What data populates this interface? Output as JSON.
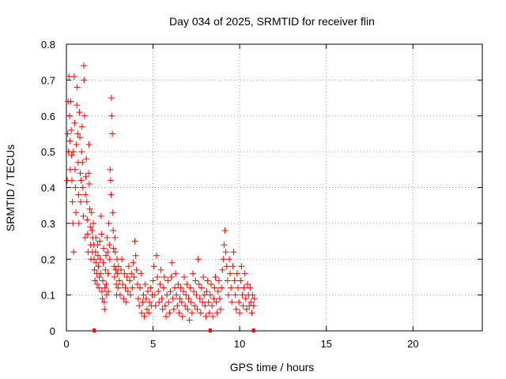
{
  "chart_data": {
    "type": "scatter",
    "title": "Day 034 of 2025, SRMTID for receiver flin",
    "xlabel": "GPS time / hours",
    "ylabel": "SRMTID / TECUs",
    "xlim": [
      0,
      24
    ],
    "ylim": [
      0,
      0.8
    ],
    "x_ticks": [
      0,
      5,
      10,
      15,
      20
    ],
    "y_ticks": [
      0,
      0.1,
      0.2,
      0.3,
      0.4,
      0.5,
      0.6,
      0.7,
      0.8
    ],
    "x_tick_labels": [
      "0",
      "5",
      "10",
      "15",
      "20"
    ],
    "y_tick_labels": [
      "0",
      "0.1",
      "0.2",
      "0.3",
      "0.4",
      "0.5",
      "0.6",
      "0.7",
      "0.8"
    ],
    "grid": true,
    "marker": "+",
    "series_color": "#ff0000",
    "zero_markers_x": [
      1.6,
      8.3,
      10.8
    ],
    "series": [
      {
        "name": "SRMTID",
        "points": [
          [
            0.05,
            0.42
          ],
          [
            0.08,
            0.55
          ],
          [
            0.1,
            0.64
          ],
          [
            0.12,
            0.5
          ],
          [
            0.15,
            0.71
          ],
          [
            0.18,
            0.6
          ],
          [
            0.2,
            0.53
          ],
          [
            0.22,
            0.45
          ],
          [
            0.25,
            0.64
          ],
          [
            0.28,
            0.56
          ],
          [
            0.3,
            0.49
          ],
          [
            0.32,
            0.42
          ],
          [
            0.35,
            0.36
          ],
          [
            0.37,
            0.3
          ],
          [
            0.4,
            0.5
          ],
          [
            0.42,
            0.22
          ],
          [
            0.45,
            0.71
          ],
          [
            0.48,
            0.58
          ],
          [
            0.5,
            0.45
          ],
          [
            0.52,
            0.4
          ],
          [
            0.55,
            0.33
          ],
          [
            0.58,
            0.52
          ],
          [
            0.6,
            0.63
          ],
          [
            0.62,
            0.68
          ],
          [
            0.65,
            0.55
          ],
          [
            0.68,
            0.47
          ],
          [
            0.7,
            0.38
          ],
          [
            0.72,
            0.3
          ],
          [
            0.75,
            0.61
          ],
          [
            0.78,
            0.54
          ],
          [
            0.8,
            0.44
          ],
          [
            0.82,
            0.36
          ],
          [
            0.85,
            0.42
          ],
          [
            0.88,
            0.5
          ],
          [
            0.9,
            0.57
          ],
          [
            0.92,
            0.47
          ],
          [
            0.95,
            0.4
          ],
          [
            0.98,
            0.32
          ],
          [
            1.0,
            0.74
          ],
          [
            1.02,
            0.7
          ],
          [
            1.05,
            0.6
          ],
          [
            1.08,
            0.26
          ],
          [
            1.1,
            0.38
          ],
          [
            1.12,
            0.43
          ],
          [
            1.15,
            0.48
          ],
          [
            1.18,
            0.36
          ],
          [
            1.2,
            0.31
          ],
          [
            1.22,
            0.27
          ],
          [
            1.25,
            0.22
          ],
          [
            1.28,
            0.44
          ],
          [
            1.3,
            0.52
          ],
          [
            1.32,
            0.41
          ],
          [
            1.35,
            0.34
          ],
          [
            1.38,
            0.29
          ],
          [
            1.4,
            0.24
          ],
          [
            1.42,
            0.2
          ],
          [
            1.45,
            0.33
          ],
          [
            1.48,
            0.28
          ],
          [
            1.5,
            0.22
          ],
          [
            1.52,
            0.26
          ],
          [
            1.55,
            0.3
          ],
          [
            1.58,
            0.24
          ],
          [
            1.6,
            0.2
          ],
          [
            1.62,
            0.17
          ],
          [
            1.65,
            0.14
          ],
          [
            1.68,
            0.22
          ],
          [
            1.7,
            0.26
          ],
          [
            1.72,
            0.19
          ],
          [
            1.75,
            0.16
          ],
          [
            1.78,
            0.13
          ],
          [
            1.8,
            0.24
          ],
          [
            1.82,
            0.21
          ],
          [
            1.85,
            0.18
          ],
          [
            1.88,
            0.12
          ],
          [
            1.9,
            0.15
          ],
          [
            1.92,
            0.25
          ],
          [
            1.95,
            0.2
          ],
          [
            1.98,
            0.16
          ],
          [
            2.0,
            0.32
          ],
          [
            2.02,
            0.27
          ],
          [
            2.05,
            0.11
          ],
          [
            2.08,
            0.09
          ],
          [
            2.1,
            0.14
          ],
          [
            2.12,
            0.19
          ],
          [
            2.15,
            0.23
          ],
          [
            2.18,
            0.08
          ],
          [
            2.2,
            0.06
          ],
          [
            2.22,
            0.12
          ],
          [
            2.25,
            0.17
          ],
          [
            2.28,
            0.21
          ],
          [
            2.3,
            0.13
          ],
          [
            2.32,
            0.1
          ],
          [
            2.35,
            0.26
          ],
          [
            2.38,
            0.22
          ],
          [
            2.4,
            0.16
          ],
          [
            2.42,
            0.11
          ],
          [
            2.45,
            0.3
          ],
          [
            2.48,
            0.24
          ],
          [
            2.5,
            0.2
          ],
          [
            2.52,
            0.45
          ],
          [
            2.55,
            0.42
          ],
          [
            2.58,
            0.38
          ],
          [
            2.6,
            0.65
          ],
          [
            2.62,
            0.6
          ],
          [
            2.65,
            0.55
          ],
          [
            2.68,
            0.33
          ],
          [
            2.7,
            0.28
          ],
          [
            2.72,
            0.23
          ],
          [
            2.75,
            0.18
          ],
          [
            2.78,
            0.15
          ],
          [
            2.8,
            0.26
          ],
          [
            2.82,
            0.22
          ],
          [
            2.85,
            0.17
          ],
          [
            2.88,
            0.13
          ],
          [
            2.9,
            0.1
          ],
          [
            2.92,
            0.2
          ],
          [
            2.95,
            0.16
          ],
          [
            2.98,
            0.12
          ],
          [
            3.0,
            0.18
          ],
          [
            3.05,
            0.14
          ],
          [
            3.1,
            0.1
          ],
          [
            3.15,
            0.17
          ],
          [
            3.2,
            0.2
          ],
          [
            3.25,
            0.13
          ],
          [
            3.3,
            0.09
          ],
          [
            3.35,
            0.16
          ],
          [
            3.4,
            0.12
          ],
          [
            3.45,
            0.08
          ],
          [
            3.5,
            0.15
          ],
          [
            3.55,
            0.11
          ],
          [
            3.6,
            0.18
          ],
          [
            3.65,
            0.14
          ],
          [
            3.7,
            0.1
          ],
          [
            3.75,
            0.16
          ],
          [
            3.8,
            0.12
          ],
          [
            3.85,
            0.19
          ],
          [
            3.9,
            0.15
          ],
          [
            3.95,
            0.25
          ],
          [
            4.0,
            0.21
          ],
          [
            4.05,
            0.17
          ],
          [
            4.1,
            0.13
          ],
          [
            4.15,
            0.09
          ],
          [
            4.2,
            0.07
          ],
          [
            4.25,
            0.12
          ],
          [
            4.3,
            0.16
          ],
          [
            4.35,
            0.05
          ],
          [
            4.4,
            0.08
          ],
          [
            4.45,
            0.1
          ],
          [
            4.5,
            0.04
          ],
          [
            4.55,
            0.13
          ],
          [
            4.6,
            0.09
          ],
          [
            4.65,
            0.06
          ],
          [
            4.7,
            0.11
          ],
          [
            4.75,
            0.05
          ],
          [
            4.8,
            0.08
          ],
          [
            4.85,
            0.12
          ],
          [
            4.9,
            0.07
          ],
          [
            4.95,
            0.1
          ],
          [
            5.0,
            0.14
          ],
          [
            5.05,
            0.18
          ],
          [
            5.1,
            0.1
          ],
          [
            5.15,
            0.07
          ],
          [
            5.2,
            0.21
          ],
          [
            5.25,
            0.15
          ],
          [
            5.3,
            0.11
          ],
          [
            5.35,
            0.08
          ],
          [
            5.4,
            0.13
          ],
          [
            5.45,
            0.17
          ],
          [
            5.5,
            0.09
          ],
          [
            5.55,
            0.06
          ],
          [
            5.6,
            0.12
          ],
          [
            5.65,
            0.15
          ],
          [
            5.7,
            0.07
          ],
          [
            5.75,
            0.04
          ],
          [
            5.8,
            0.1
          ],
          [
            5.85,
            0.14
          ],
          [
            5.9,
            0.08
          ],
          [
            5.95,
            0.05
          ],
          [
            6.0,
            0.11
          ],
          [
            6.05,
            0.15
          ],
          [
            6.1,
            0.19
          ],
          [
            6.15,
            0.09
          ],
          [
            6.2,
            0.06
          ],
          [
            6.25,
            0.12
          ],
          [
            6.3,
            0.16
          ],
          [
            6.35,
            0.1
          ],
          [
            6.4,
            0.07
          ],
          [
            6.45,
            0.13
          ],
          [
            6.5,
            0.05
          ],
          [
            6.55,
            0.09
          ],
          [
            6.6,
            0.12
          ],
          [
            6.65,
            0.08
          ],
          [
            6.7,
            0.04
          ],
          [
            6.75,
            0.11
          ],
          [
            6.8,
            0.15
          ],
          [
            6.85,
            0.07
          ],
          [
            6.9,
            0.1
          ],
          [
            6.95,
            0.13
          ],
          [
            7.0,
            0.06
          ],
          [
            7.05,
            0.09
          ],
          [
            7.1,
            0.03
          ],
          [
            7.15,
            0.12
          ],
          [
            7.2,
            0.08
          ],
          [
            7.25,
            0.05
          ],
          [
            7.3,
            0.16
          ],
          [
            7.35,
            0.11
          ],
          [
            7.4,
            0.07
          ],
          [
            7.45,
            0.14
          ],
          [
            7.5,
            0.1
          ],
          [
            7.55,
            0.06
          ],
          [
            7.6,
            0.2
          ],
          [
            7.65,
            0.13
          ],
          [
            7.7,
            0.09
          ],
          [
            7.75,
            0.05
          ],
          [
            7.8,
            0.12
          ],
          [
            7.85,
            0.08
          ],
          [
            7.9,
            0.15
          ],
          [
            7.95,
            0.1
          ],
          [
            8.0,
            0.07
          ],
          [
            8.05,
            0.04
          ],
          [
            8.1,
            0.11
          ],
          [
            8.15,
            0.14
          ],
          [
            8.2,
            0.08
          ],
          [
            8.25,
            0.05
          ],
          [
            8.3,
            0.1
          ],
          [
            8.35,
            0.13
          ],
          [
            8.4,
            0.07
          ],
          [
            8.45,
            0.04
          ],
          [
            8.5,
            0.09
          ],
          [
            8.55,
            0.12
          ],
          [
            8.6,
            0.15
          ],
          [
            8.65,
            0.08
          ],
          [
            8.7,
            0.05
          ],
          [
            8.75,
            0.11
          ],
          [
            8.8,
            0.14
          ],
          [
            8.85,
            0.09
          ],
          [
            8.9,
            0.06
          ],
          [
            8.95,
            0.12
          ],
          [
            9.0,
            0.17
          ],
          [
            9.05,
            0.2
          ],
          [
            9.1,
            0.24
          ],
          [
            9.15,
            0.28
          ],
          [
            9.2,
            0.22
          ],
          [
            9.25,
            0.18
          ],
          [
            9.3,
            0.14
          ],
          [
            9.35,
            0.1
          ],
          [
            9.4,
            0.2
          ],
          [
            9.45,
            0.16
          ],
          [
            9.5,
            0.12
          ],
          [
            9.55,
            0.08
          ],
          [
            9.6,
            0.18
          ],
          [
            9.65,
            0.22
          ],
          [
            9.7,
            0.14
          ],
          [
            9.75,
            0.1
          ],
          [
            9.8,
            0.06
          ],
          [
            9.85,
            0.16
          ],
          [
            9.9,
            0.12
          ],
          [
            9.95,
            0.08
          ],
          [
            10.0,
            0.05
          ],
          [
            10.05,
            0.14
          ],
          [
            10.1,
            0.18
          ],
          [
            10.15,
            0.1
          ],
          [
            10.2,
            0.07
          ],
          [
            10.25,
            0.12
          ],
          [
            10.3,
            0.16
          ],
          [
            10.35,
            0.09
          ],
          [
            10.4,
            0.06
          ],
          [
            10.45,
            0.13
          ],
          [
            10.5,
            0.1
          ],
          [
            10.55,
            0.07
          ],
          [
            10.6,
            0.12
          ],
          [
            10.65,
            0.08
          ],
          [
            10.7,
            0.05
          ],
          [
            10.75,
            0.1
          ],
          [
            10.8,
            0.07
          ],
          [
            10.85,
            0.09
          ]
        ]
      }
    ]
  }
}
